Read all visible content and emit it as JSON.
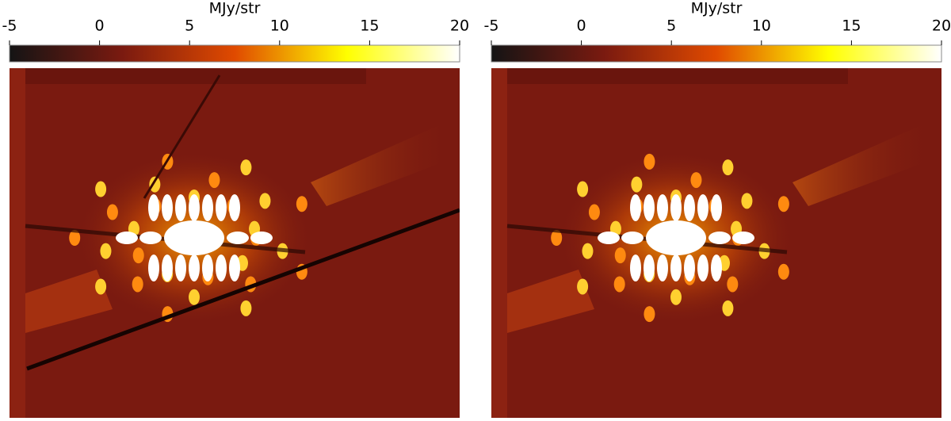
{
  "chart_data": [
    {
      "type": "image",
      "colorbar_label": "MJy/str",
      "clim": [
        -5,
        20
      ],
      "cticks": [
        -5,
        0,
        5,
        10,
        15,
        20
      ],
      "colors": [
        "#141414",
        "#7a1a10",
        "#e04a00",
        "#ffff00",
        "#ffffff"
      ]
    },
    {
      "type": "image",
      "colorbar_label": "MJy/str",
      "clim": [
        -5,
        20
      ],
      "cticks": [
        -5,
        0,
        5,
        10,
        15,
        20
      ],
      "colors": [
        "#141414",
        "#7a1a10",
        "#e04a00",
        "#ffff00",
        "#ffffff"
      ]
    }
  ]
}
